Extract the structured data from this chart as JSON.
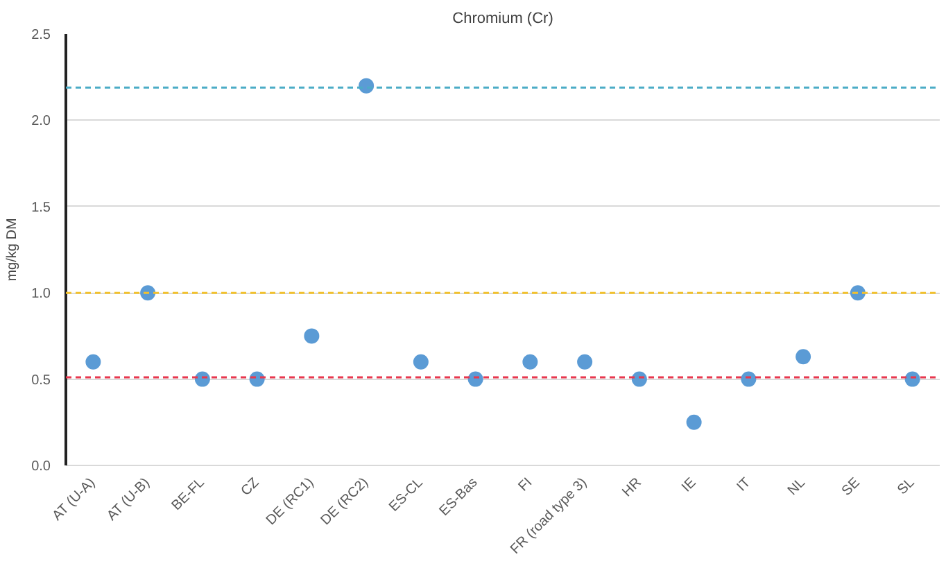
{
  "chart_data": {
    "type": "scatter",
    "title": "Chromium (Cr)",
    "ylabel": "mg/kg DM",
    "categories": [
      "AT (U-A)",
      "AT (U-B)",
      "BE-FL",
      "CZ",
      "DE (RC1)",
      "DE (RC2)",
      "ES-CL",
      "ES-Bas",
      "FI",
      "FR (road type 3)",
      "HR",
      "IE",
      "IT",
      "NL",
      "SE",
      "SL"
    ],
    "series": [
      {
        "color": "#5b9bd5",
        "values": [
          0.6,
          1.0,
          0.5,
          0.5,
          0.75,
          2.2,
          0.6,
          0.5,
          0.6,
          0.6,
          0.5,
          0.25,
          0.5,
          0.63,
          1.0,
          0.5
        ]
      }
    ],
    "ylim": [
      0,
      2.5
    ],
    "yticks": [
      {
        "value": 0,
        "label": "0.0"
      },
      {
        "value": 0.5,
        "label": "0.5"
      },
      {
        "value": 1,
        "label": "1.0"
      },
      {
        "value": 1.5,
        "label": "1.5"
      },
      {
        "value": 2,
        "label": "2.0"
      },
      {
        "value": 2.5,
        "label": "2.5"
      }
    ],
    "grid": "y",
    "marker": "circle",
    "ref_lines": [
      {
        "axis": "y",
        "value": 2.19,
        "color": "#4bacc6",
        "line_style": "dashed"
      },
      {
        "axis": "y",
        "value": 1.0,
        "color": "#f2c12e",
        "line_style": "dashed"
      },
      {
        "axis": "y",
        "value": 0.51,
        "color": "#e8384f",
        "line_style": "dashed"
      }
    ]
  }
}
